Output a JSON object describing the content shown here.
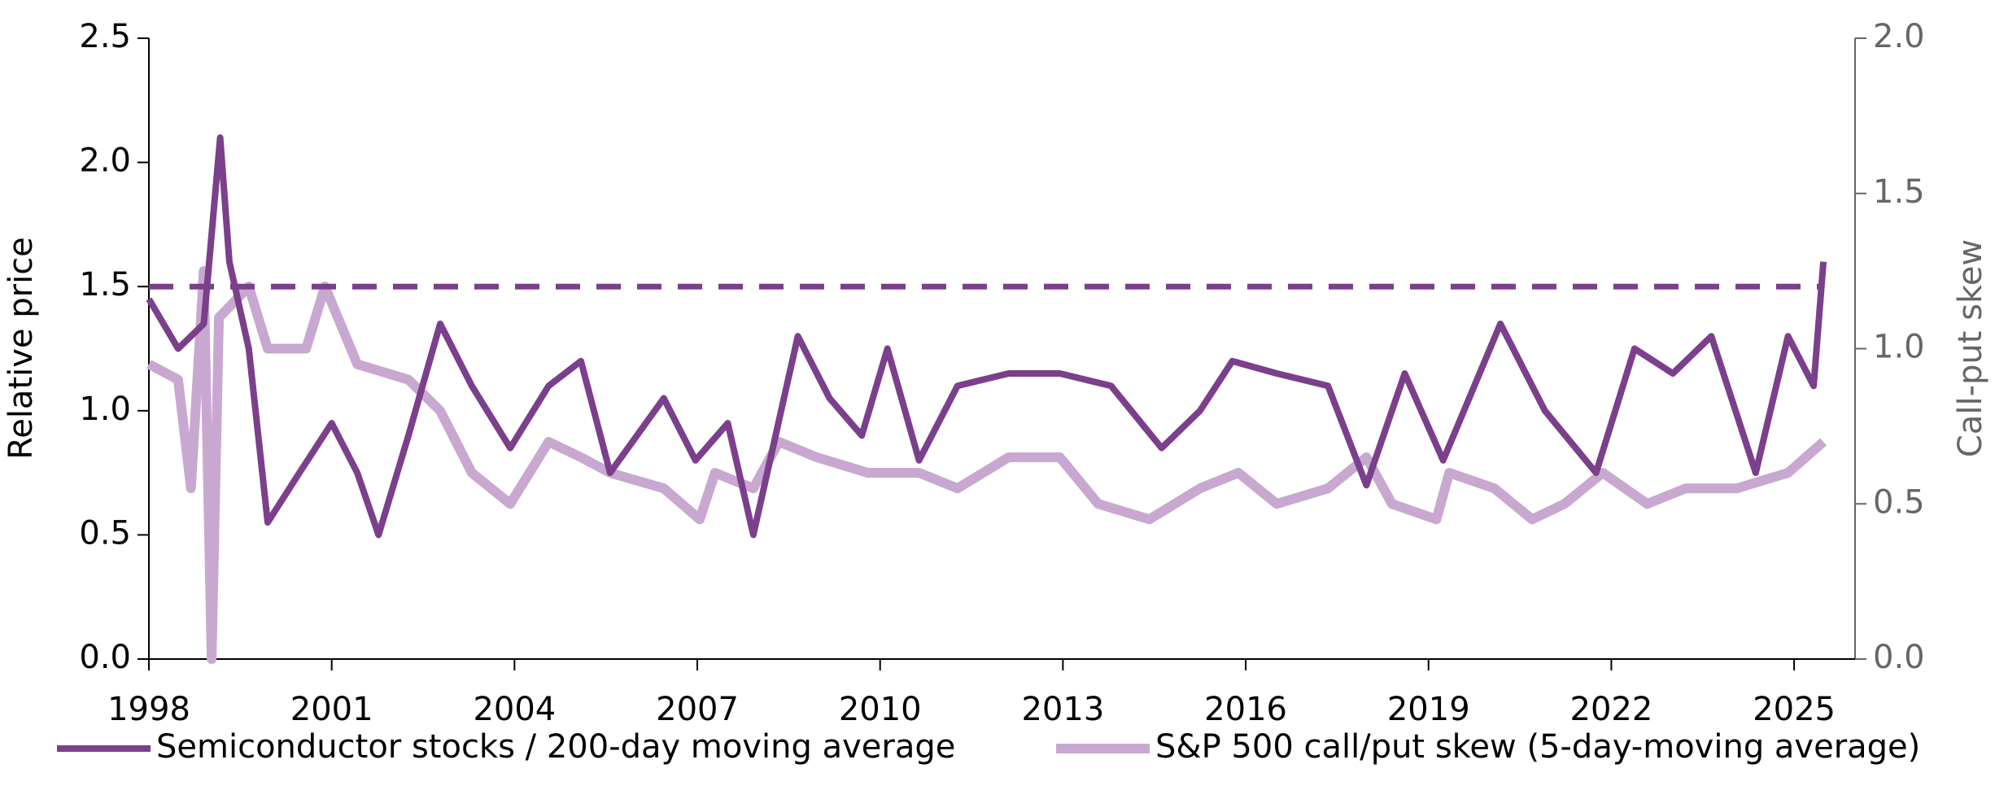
{
  "chart_data": {
    "type": "line",
    "y_label": "Relative price",
    "y2_label": "Call-put skew",
    "xlim": [
      1998,
      2026
    ],
    "xticks": [
      1998,
      2001,
      2004,
      2007,
      2010,
      2013,
      2016,
      2019,
      2022,
      2025
    ],
    "ylim": [
      0,
      2.5
    ],
    "yticks": [
      {
        "value": 0,
        "label": "0.0"
      },
      0.5,
      {
        "value": 1,
        "label": "1.0"
      },
      1.5,
      {
        "value": 2,
        "label": "2.0"
      },
      2.5
    ],
    "y2lim": [
      0,
      2
    ],
    "y2ticks": [
      {
        "value": 0,
        "label": "0.0"
      },
      0.5,
      {
        "value": 1,
        "label": "1.0"
      },
      1.5,
      {
        "value": 2,
        "label": "2.0"
      }
    ],
    "reference_line": {
      "value": 1.5,
      "color": "#7b3f8c"
    },
    "legend": "bottom",
    "series": [
      {
        "name": "Semiconductor stocks / 200-day moving average",
        "color": "#7b3f8c",
        "axis": "y",
        "x": [
          1998,
          1998.48,
          1998.9,
          1999.17,
          1999.32,
          1999.64,
          1999.95,
          2000.47,
          2001.0,
          2001.42,
          2001.77,
          2002.26,
          2002.78,
          2003.3,
          2003.93,
          2004.56,
          2005.09,
          2005.57,
          2006.45,
          2006.97,
          2007.5,
          2007.92,
          2008.65,
          2009.17,
          2009.7,
          2010.12,
          2010.64,
          2011.27,
          2012.11,
          2012.95,
          2013.79,
          2014.62,
          2015.25,
          2015.78,
          2016.51,
          2017.35,
          2017.98,
          2018.61,
          2019.24,
          2020.18,
          2020.91,
          2021.75,
          2022.38,
          2023.01,
          2023.64,
          2024.37,
          2024.9,
          2025.32,
          2025.48
        ],
        "values": [
          1.45,
          1.25,
          1.35,
          2.1,
          1.6,
          1.25,
          0.55,
          0.75,
          0.95,
          0.75,
          0.5,
          0.9,
          1.35,
          1.1,
          0.85,
          1.1,
          1.2,
          0.75,
          1.05,
          0.8,
          0.95,
          0.5,
          1.3,
          1.05,
          0.9,
          1.25,
          0.8,
          1.1,
          1.15,
          1.15,
          1.1,
          0.85,
          1.0,
          1.2,
          1.15,
          1.1,
          0.7,
          1.15,
          0.8,
          1.35,
          1.0,
          0.75,
          1.25,
          1.15,
          1.3,
          0.75,
          1.3,
          1.1,
          1.6
        ]
      },
      {
        "name": "S&P 500 call/put skew (5-day-moving average)",
        "color": "#c8a8d0",
        "axis": "y2",
        "x": [
          1998,
          1998.48,
          1998.69,
          1998.9,
          1999.03,
          1999.15,
          1999.64,
          1999.95,
          2000.58,
          2000.89,
          2001.42,
          2002.26,
          2002.78,
          2003.3,
          2003.93,
          2004.56,
          2005.09,
          2005.57,
          2006.45,
          2007.04,
          2007.29,
          2007.92,
          2008.34,
          2008.96,
          2009.8,
          2010.64,
          2011.27,
          2012.11,
          2012.95,
          2013.58,
          2014.42,
          2015.25,
          2015.88,
          2016.51,
          2017.35,
          2017.98,
          2018.4,
          2019.13,
          2019.34,
          2020.08,
          2020.7,
          2021.23,
          2021.86,
          2022.59,
          2023.22,
          2024.06,
          2024.9,
          2025.48
        ],
        "values": [
          0.95,
          0.9,
          0.55,
          1.25,
          0.0,
          1.1,
          1.2,
          1.0,
          1.0,
          1.2,
          0.95,
          0.9,
          0.8,
          0.6,
          0.5,
          0.7,
          0.65,
          0.6,
          0.55,
          0.45,
          0.6,
          0.55,
          0.7,
          0.65,
          0.6,
          0.6,
          0.55,
          0.65,
          0.65,
          0.5,
          0.45,
          0.55,
          0.6,
          0.5,
          0.55,
          0.65,
          0.5,
          0.45,
          0.6,
          0.55,
          0.45,
          0.5,
          0.6,
          0.5,
          0.55,
          0.55,
          0.6,
          0.7
        ]
      }
    ]
  }
}
